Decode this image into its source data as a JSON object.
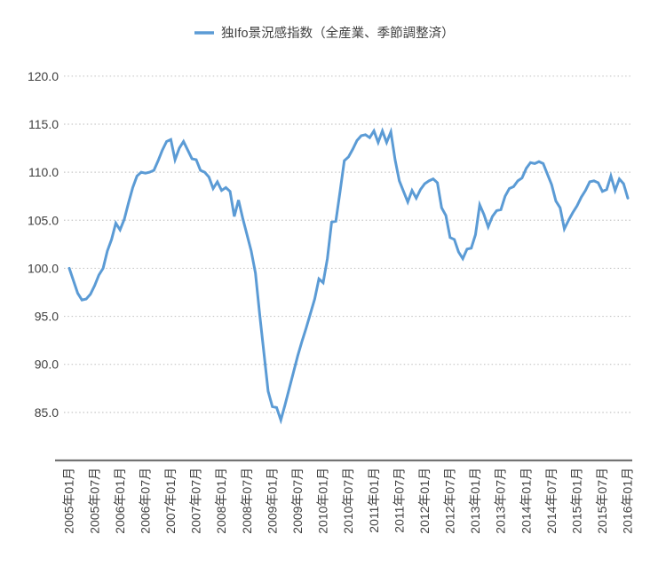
{
  "page": {
    "background": "#ffffff"
  },
  "legend": {
    "label": "独Ifo景況感指数（全産業、季節調整済）",
    "marker_color": "#5B9BD5",
    "position": "top-center"
  },
  "chart_data": {
    "type": "line",
    "title": "独Ifo景況感指数（全産業、季節調整済）",
    "series": [
      {
        "name": "独Ifo景況感指数（全産業、季節調整済）",
        "color": "#5B9BD5",
        "x_start": "2005-01",
        "x_end": "2016-01",
        "x_step": "1 month",
        "values": [
          100.0,
          98.7,
          97.4,
          96.7,
          96.8,
          97.3,
          98.2,
          99.3,
          100.0,
          101.8,
          103.0,
          104.7,
          104.0,
          105.1,
          106.8,
          108.4,
          109.6,
          110.0,
          109.9,
          110.0,
          110.2,
          111.2,
          112.3,
          113.2,
          113.4,
          111.3,
          112.5,
          113.2,
          112.3,
          111.4,
          111.3,
          110.2,
          110.0,
          109.5,
          108.3,
          109.0,
          108.1,
          108.4,
          108.0,
          105.4,
          107.1,
          105.2,
          103.5,
          101.8,
          99.5,
          95.2,
          91.2,
          87.2,
          85.6,
          85.5,
          84.2,
          85.8,
          87.5,
          89.2,
          90.9,
          92.4,
          93.8,
          95.3,
          96.8,
          98.9,
          98.5,
          101.0,
          104.8,
          104.9,
          108.0,
          111.2,
          111.6,
          112.4,
          113.3,
          113.8,
          113.9,
          113.6,
          114.3,
          113.1,
          114.3,
          113.1,
          114.2,
          111.3,
          109.1,
          108.0,
          106.9,
          108.1,
          107.3,
          108.2,
          108.8,
          109.1,
          109.3,
          108.9,
          106.3,
          105.5,
          103.2,
          103.0,
          101.7,
          101.0,
          102.0,
          102.1,
          103.5,
          106.6,
          105.6,
          104.3,
          105.4,
          106.0,
          106.1,
          107.5,
          108.3,
          108.5,
          109.1,
          109.4,
          110.4,
          111.0,
          110.9,
          111.1,
          110.9,
          109.8,
          108.7,
          107.0,
          106.3,
          104.1,
          105.0,
          105.8,
          106.5,
          107.4,
          108.1,
          109.0,
          109.1,
          108.9,
          108.0,
          108.2,
          109.6,
          108.1,
          109.3,
          108.8,
          107.3
        ]
      }
    ],
    "x_tick_labels": [
      "2005年01月",
      "2005年07月",
      "2006年01月",
      "2006年07月",
      "2007年01月",
      "2007年07月",
      "2008年01月",
      "2008年07月",
      "2009年01月",
      "2009年07月",
      "2010年01月",
      "2010年07月",
      "2011年01月",
      "2011年07月",
      "2012年01月",
      "2012年07月",
      "2013年01月",
      "2013年07月",
      "2014年01月",
      "2014年07月",
      "2015年01月",
      "2015年07月",
      "2016年01月"
    ],
    "x_tick_interval_months": 6,
    "x_tick_rotation_deg": -90,
    "y_ticks": [
      85,
      90,
      95,
      100,
      105,
      110,
      115,
      120
    ],
    "y_tick_labels": [
      "85.0",
      "90.0",
      "95.0",
      "100.0",
      "105.0",
      "110.0",
      "115.0",
      "120.0"
    ],
    "ylim": [
      80,
      121
    ],
    "grid": "horizontal-dotted",
    "legend_position": "top",
    "xlabel": "",
    "ylabel": "",
    "colors": {
      "line": "#5B9BD5",
      "grid": "#C6C6C6",
      "axis": "#737373",
      "text": "#404040"
    }
  }
}
